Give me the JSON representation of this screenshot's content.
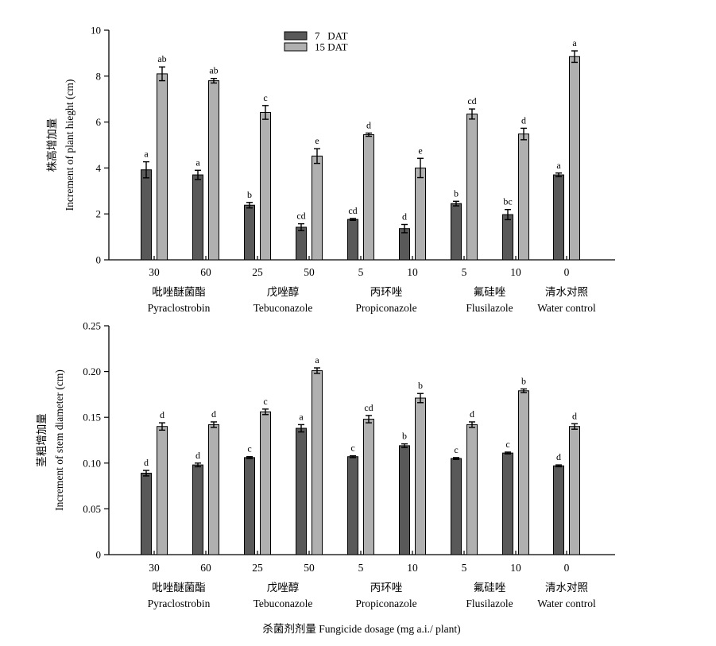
{
  "colors": {
    "s7": "#595959",
    "s15": "#b0b0b0",
    "axis": "#000000"
  },
  "legend": [
    "7   DAT",
    "15 DAT"
  ],
  "x_axis_title": "杀菌剂剂量 Fungicide dosage (mg a.i./ plant)",
  "chart_data": [
    {
      "type": "bar",
      "title": "",
      "ylabel_cn": "株高增加量",
      "ylabel_en": "Increment of plant hieght (cm)",
      "ylim": [
        0,
        10
      ],
      "yticks": [
        "0",
        "2",
        "4",
        "6",
        "8",
        "10"
      ],
      "grid": false,
      "legend_position": "top-center",
      "categories": [
        "30",
        "60",
        "25",
        "50",
        "5",
        "10",
        "5",
        "10",
        "0"
      ],
      "groups": [
        {
          "cn": "吡唑醚菌酯",
          "en": "Pyraclostrobin"
        },
        {
          "cn": "戊唑醇",
          "en": "Tebuconazole"
        },
        {
          "cn": "丙环唑",
          "en": "Propiconazole"
        },
        {
          "cn": "氟硅唑",
          "en": "Flusilazole"
        },
        {
          "cn": "清水对照",
          "en": "Water control"
        }
      ],
      "series": [
        {
          "name": "7   DAT",
          "values": [
            3.92,
            3.7,
            2.38,
            1.42,
            1.76,
            1.36,
            2.45,
            1.97,
            3.7
          ],
          "errors": [
            0.35,
            0.2,
            0.12,
            0.15,
            0.04,
            0.18,
            0.1,
            0.22,
            0.08
          ],
          "labels": [
            "a",
            "a",
            "b",
            "cd",
            "cd",
            "d",
            "b",
            "bc",
            "a"
          ]
        },
        {
          "name": "15 DAT",
          "values": [
            8.1,
            7.8,
            6.42,
            4.52,
            5.45,
            4.0,
            6.35,
            5.48,
            8.85
          ],
          "errors": [
            0.3,
            0.1,
            0.3,
            0.32,
            0.07,
            0.42,
            0.22,
            0.25,
            0.25
          ],
          "labels": [
            "ab",
            "ab",
            "c",
            "e",
            "d",
            "e",
            "cd",
            "d",
            "a"
          ]
        }
      ]
    },
    {
      "type": "bar",
      "title": "",
      "ylabel_cn": "茎粗增加量",
      "ylabel_en": "Increment of stem diameter (cm)",
      "ylim": [
        0,
        0.25
      ],
      "yticks": [
        "0",
        "0.05",
        "0.10",
        "0.15",
        "0.20",
        "0.25"
      ],
      "grid": false,
      "categories": [
        "30",
        "60",
        "25",
        "50",
        "5",
        "10",
        "5",
        "10",
        "0"
      ],
      "groups": [
        {
          "cn": "吡唑醚菌酯",
          "en": "Pyraclostrobin"
        },
        {
          "cn": "戊唑醇",
          "en": "Tebuconazole"
        },
        {
          "cn": "丙环唑",
          "en": "Propiconazole"
        },
        {
          "cn": "氟硅唑",
          "en": "Flusilazole"
        },
        {
          "cn": "清水对照",
          "en": "Water control"
        }
      ],
      "series": [
        {
          "name": "7   DAT",
          "values": [
            0.089,
            0.098,
            0.106,
            0.138,
            0.107,
            0.119,
            0.105,
            0.111,
            0.097
          ],
          "errors": [
            0.003,
            0.002,
            0.001,
            0.004,
            0.001,
            0.002,
            0.001,
            0.001,
            0.001
          ],
          "labels": [
            "d",
            "d",
            "c",
            "a",
            "c",
            "b",
            "c",
            "c",
            "d"
          ]
        },
        {
          "name": "15 DAT",
          "values": [
            0.14,
            0.142,
            0.156,
            0.201,
            0.148,
            0.171,
            0.142,
            0.179,
            0.14
          ],
          "errors": [
            0.004,
            0.003,
            0.003,
            0.003,
            0.004,
            0.005,
            0.003,
            0.002,
            0.003
          ],
          "labels": [
            "d",
            "d",
            "c",
            "a",
            "cd",
            "b",
            "d",
            "b",
            "d"
          ]
        }
      ]
    }
  ]
}
